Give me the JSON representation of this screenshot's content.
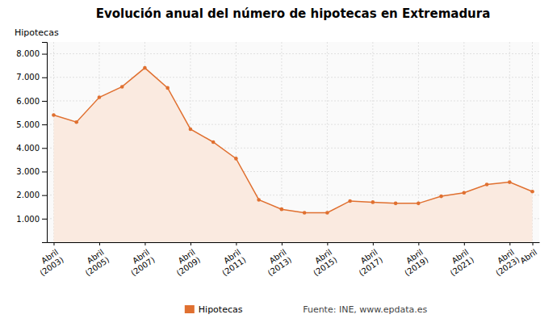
{
  "chart_data": {
    "type": "area",
    "title": "Evolución anual del número de hipotecas en Extremadura",
    "ylabel": "Hipotecas",
    "categories": [
      "Abril\n(2003)",
      null,
      "Abril\n(2005)",
      null,
      "Abril\n(2007)",
      null,
      "Abril\n(2009)",
      null,
      "Abril\n(2011)",
      null,
      "Abril\n(2013)",
      null,
      "Abril\n(2015)",
      null,
      "Abril\n(2017)",
      null,
      "Abril\n(2019)",
      null,
      "Abril\n(2021)",
      null,
      "Abril\n(2023)",
      "Abril"
    ],
    "series": [
      {
        "name": "Hipotecas",
        "color": "#E07030",
        "marker": "circle",
        "values": [
          5400,
          5100,
          6150,
          6600,
          7400,
          6550,
          4800,
          4250,
          3550,
          1800,
          1400,
          1250,
          1250,
          1750,
          1700,
          1650,
          1650,
          1950,
          2100,
          2450,
          2550,
          2150
        ]
      }
    ],
    "ylim": [
      0,
      8500
    ],
    "yticks": [
      {
        "value": 1000,
        "label": "1.000"
      },
      {
        "value": 2000,
        "label": "2.000"
      },
      {
        "value": 3000,
        "label": "3.000"
      },
      {
        "value": 4000,
        "label": "4.000"
      },
      {
        "value": 5000,
        "label": "5.000"
      },
      {
        "value": 6000,
        "label": "6.000"
      },
      {
        "value": 7000,
        "label": "7.000"
      },
      {
        "value": 8000,
        "label": "8.000"
      }
    ],
    "grid": true,
    "legend": "bottom",
    "annotations": [
      "Fuente: INE, www.epdata.es"
    ]
  }
}
